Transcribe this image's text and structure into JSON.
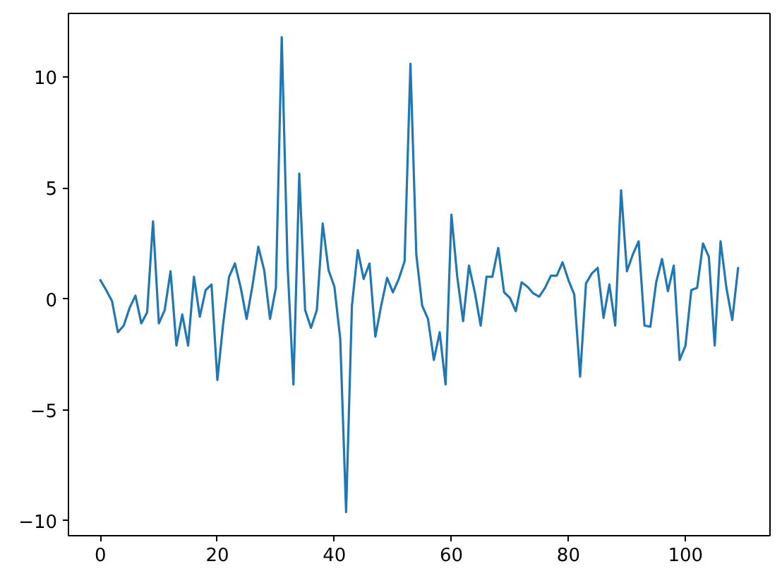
{
  "chart_data": {
    "type": "line",
    "x": [
      0,
      1,
      2,
      3,
      4,
      5,
      6,
      7,
      8,
      9,
      10,
      11,
      12,
      13,
      14,
      15,
      16,
      17,
      18,
      19,
      20,
      21,
      22,
      23,
      24,
      25,
      26,
      27,
      28,
      29,
      30,
      31,
      32,
      33,
      34,
      35,
      36,
      37,
      38,
      39,
      40,
      41,
      42,
      43,
      44,
      45,
      46,
      47,
      48,
      49,
      50,
      51,
      52,
      53,
      54,
      55,
      56,
      57,
      58,
      59,
      60,
      61,
      62,
      63,
      64,
      65,
      66,
      67,
      68,
      69,
      70,
      71,
      72,
      73,
      74,
      75,
      76,
      77,
      78,
      79,
      80,
      81,
      82,
      83,
      84,
      85,
      86,
      87,
      88,
      89,
      90,
      91,
      92,
      93,
      94,
      95,
      96,
      97,
      98,
      99,
      100,
      101,
      102,
      103,
      104,
      105,
      106,
      107,
      108,
      109
    ],
    "series": [
      {
        "color": "#1f77b4",
        "values": [
          0.85,
          0.4,
          -0.1,
          -1.5,
          -1.2,
          -0.4,
          0.15,
          -1.1,
          -0.6,
          3.5,
          -1.1,
          -0.5,
          1.25,
          -2.1,
          -0.7,
          -2.1,
          1.0,
          -0.8,
          0.4,
          0.65,
          -3.65,
          -1.1,
          1.0,
          1.6,
          0.5,
          -0.9,
          0.6,
          2.35,
          1.3,
          -0.9,
          0.5,
          11.8,
          1.5,
          -3.85,
          5.65,
          -0.5,
          -1.3,
          -0.5,
          3.4,
          1.3,
          0.55,
          -1.8,
          -9.6,
          -0.3,
          2.2,
          0.9,
          1.6,
          -1.7,
          -0.3,
          0.95,
          0.3,
          0.9,
          1.7,
          10.6,
          2.0,
          -0.3,
          -0.9,
          -2.75,
          -1.5,
          -3.85,
          3.8,
          1.0,
          -1.0,
          1.5,
          0.3,
          -1.2,
          1.0,
          1.0,
          2.3,
          0.3,
          0.05,
          -0.55,
          0.75,
          0.55,
          0.25,
          0.1,
          0.5,
          1.05,
          1.05,
          1.65,
          0.85,
          0.2,
          -3.5,
          0.7,
          1.15,
          1.4,
          -0.85,
          0.65,
          -1.2,
          4.9,
          1.25,
          2.0,
          2.6,
          -1.2,
          -1.25,
          0.75,
          1.8,
          0.35,
          1.5,
          -2.75,
          -2.1,
          0.4,
          0.5,
          2.5,
          1.9,
          -2.1,
          2.6,
          0.5,
          -0.95,
          1.4
        ]
      }
    ],
    "xlim": [
      -5.45,
      114.45
    ],
    "ylim": [
      -10.67,
      12.87
    ],
    "xticks": [
      0,
      20,
      40,
      60,
      80,
      100
    ],
    "yticks": [
      -10,
      -5,
      0,
      5,
      10
    ],
    "grid": false,
    "marker": "none",
    "line_style": "solid"
  }
}
